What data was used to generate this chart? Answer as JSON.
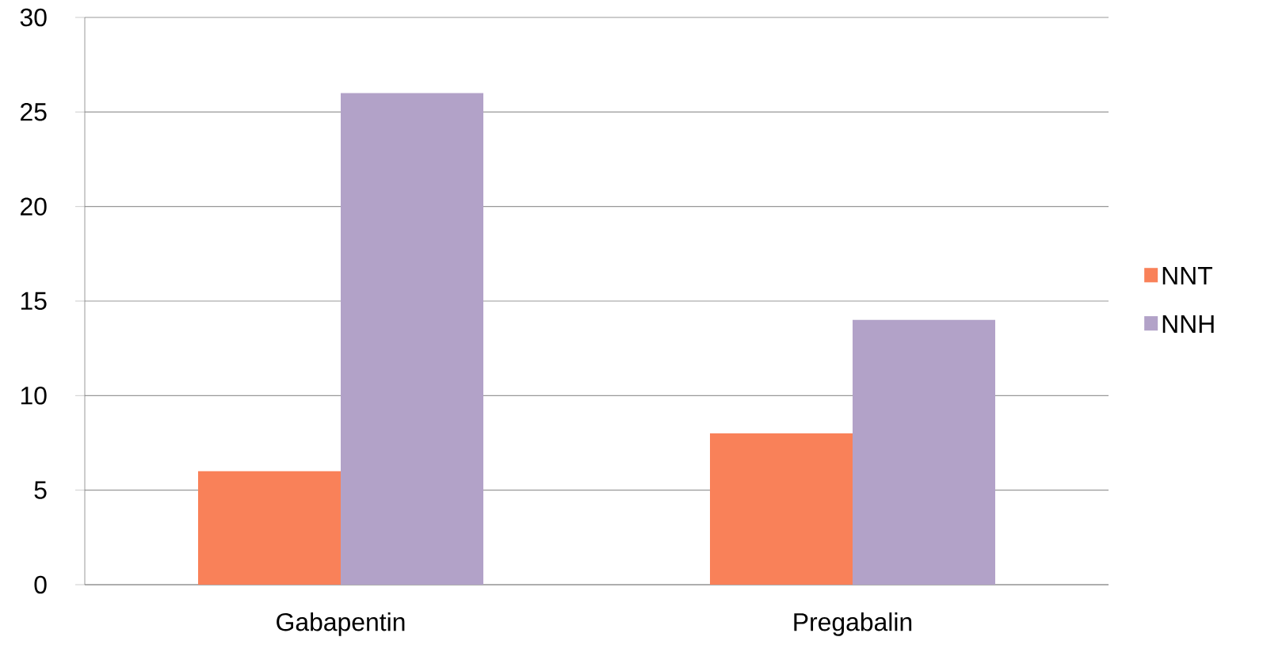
{
  "chart_data": {
    "type": "bar",
    "categories": [
      "Gabapentin",
      "Pregabalin"
    ],
    "series": [
      {
        "name": "NNT",
        "color": "#f98159",
        "values": [
          6,
          8
        ]
      },
      {
        "name": "NNH",
        "color": "#b2a2c8",
        "values": [
          26,
          14
        ]
      }
    ],
    "ylim": [
      0,
      30
    ],
    "yticks": [
      0,
      5,
      10,
      15,
      20,
      25,
      30
    ],
    "grid": "y",
    "legend": "right"
  }
}
